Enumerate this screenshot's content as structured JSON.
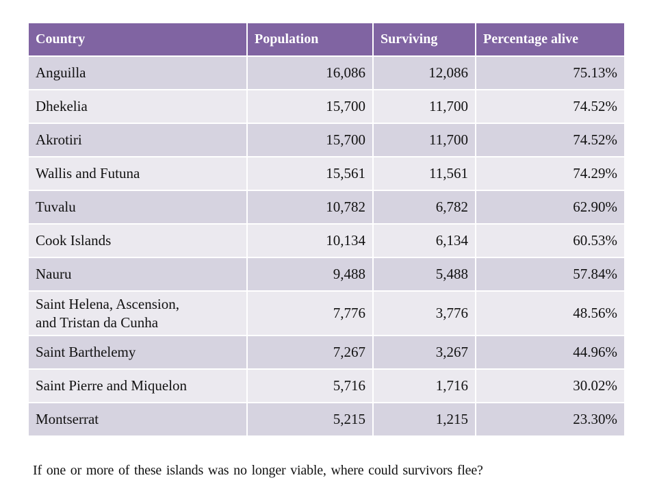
{
  "table": {
    "headers": [
      "Country",
      "Population",
      "Surviving",
      "Percentage alive"
    ],
    "rows": [
      {
        "country": "Anguilla",
        "population": "16,086",
        "surviving": "12,086",
        "percent": "75.13%"
      },
      {
        "country": "Dhekelia",
        "population": "15,700",
        "surviving": "11,700",
        "percent": "74.52%"
      },
      {
        "country": "Akrotiri",
        "population": "15,700",
        "surviving": "11,700",
        "percent": "74.52%"
      },
      {
        "country": "Wallis and Futuna",
        "population": "15,561",
        "surviving": "11,561",
        "percent": "74.29%"
      },
      {
        "country": "Tuvalu",
        "population": "10,782",
        "surviving": "6,782",
        "percent": "62.90%"
      },
      {
        "country": "Cook Islands",
        "population": "10,134",
        "surviving": "6,134",
        "percent": "60.53%"
      },
      {
        "country": "Nauru",
        "population": "9,488",
        "surviving": "5,488",
        "percent": "57.84%"
      },
      {
        "country_line1": "Saint Helena, Ascension,",
        "country_line2": "and Tristan da Cunha",
        "population": "7,776",
        "surviving": "3,776",
        "percent": "48.56%"
      },
      {
        "country": "Saint Barthelemy",
        "population": "7,267",
        "surviving": "3,267",
        "percent": "44.96%"
      },
      {
        "country": "Saint Pierre and Miquelon",
        "population": "5,716",
        "surviving": "1,716",
        "percent": "30.02%"
      },
      {
        "country": "Montserrat",
        "population": "5,215",
        "surviving": "1,215",
        "percent": "23.30%"
      }
    ]
  },
  "caption": "If one or more of these islands was no longer viable, where could survivors flee?",
  "colors": {
    "header_bg": "#8064a2",
    "row_dark": "#d6d3e0",
    "row_light": "#ebe9ef"
  }
}
